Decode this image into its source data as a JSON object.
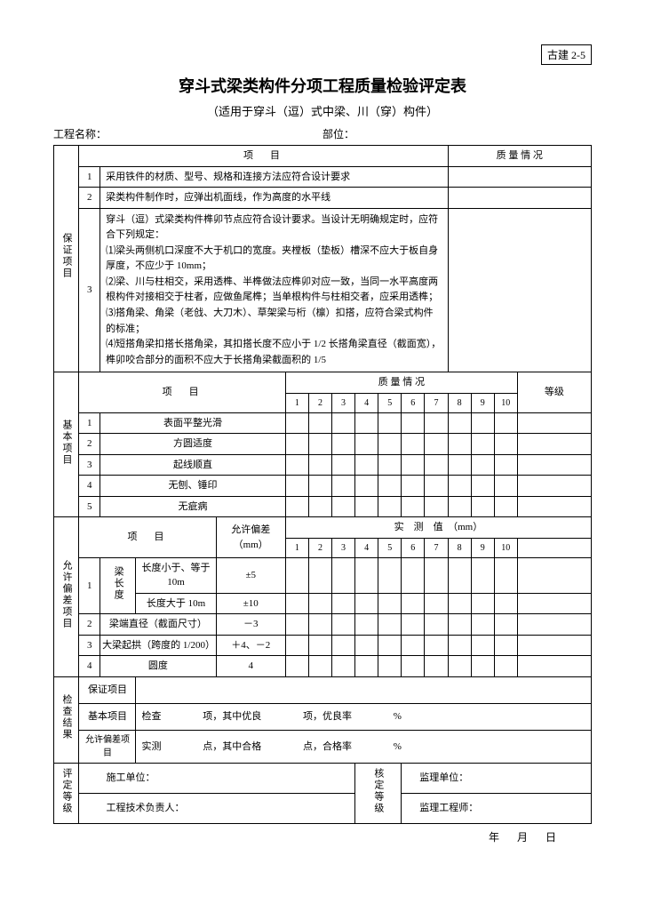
{
  "doc_code": "古建 2-5",
  "title": "穿斗式梁类构件分项工程质量检验评定表",
  "subtitle": "（适用于穿斗（逗）式中梁、川（穿）构件）",
  "project_label": "工程名称：",
  "section_label": "部位：",
  "col_item": "项　目",
  "col_quality": "质 量 情 况",
  "guarantee": {
    "label": "保证项目",
    "rows": [
      {
        "n": "1",
        "text": "采用铁件的材质、型号、规格和连接方法应符合设计要求"
      },
      {
        "n": "2",
        "text": "梁类构件制作时，应弹出机面线，作为高度的水平线"
      },
      {
        "n": "3",
        "text": "穿斗（逗）式梁类构件榫卯节点应符合设计要求。当设计无明确规定时，应符合下列规定：\n⑴梁头两侧机口深度不大于机口的宽度。夹樘板（垫板）槽深不应大于板自身厚度，不应少于 10mm；\n⑵梁、川与柱相交，采用透榫、半榫做法应榫卯对应一致，当同一水平高度两根构件对接相交于柱者，应做鱼尾榫；当单根构件与柱相交者，应采用透榫；\n⑶搭角梁、角梁（老戗、大刀木）、草架梁与桁（檩）扣搭，应符合梁式构件的标准；\n⑷短搭角梁扣搭长搭角梁，其扣搭长度不应小于 1/2 长搭角梁直径（截面宽），榫卯咬合部分的面积不应大于长搭角梁截面积的 1/5"
      }
    ]
  },
  "basic": {
    "label": "基本项目",
    "grade_label": "等级",
    "nums": [
      "1",
      "2",
      "3",
      "4",
      "5",
      "6",
      "7",
      "8",
      "9",
      "10"
    ],
    "rows": [
      {
        "n": "1",
        "text": "表面平整光滑"
      },
      {
        "n": "2",
        "text": "方圆适度"
      },
      {
        "n": "3",
        "text": "起线顺直"
      },
      {
        "n": "4",
        "text": "无刨、锤印"
      },
      {
        "n": "5",
        "text": "无疵病"
      }
    ]
  },
  "tolerance": {
    "label": "允许偏差项目",
    "tol_label": "允许偏差\n（mm）",
    "measured_label": "实　测　值　（mm）",
    "nums": [
      "1",
      "2",
      "3",
      "4",
      "5",
      "6",
      "7",
      "8",
      "9",
      "10"
    ],
    "beam_len_label": "梁长度",
    "rows": [
      {
        "n": "1",
        "sub": "长度小于、等于 10m",
        "tol": "±5"
      },
      {
        "nsub": "",
        "sub": "长度大于 10m",
        "tol": "±10"
      },
      {
        "n": "2",
        "text": "梁端直径（截面尺寸）",
        "tol": "－3"
      },
      {
        "n": "3",
        "text": "大梁起拱（跨度的 1/200）",
        "tol": "＋4、－2"
      },
      {
        "n": "4",
        "text": "圆度",
        "tol": "4"
      }
    ]
  },
  "check": {
    "label": "检查结果",
    "r1": "保证项目",
    "r2": "基本项目",
    "r2_text_a": "检查",
    "r2_text_b": "项，其中优良",
    "r2_text_c": "项，优良率",
    "r2_text_d": "%",
    "r3": "允许偏差项目",
    "r3_text_a": "实测",
    "r3_text_b": "点，其中合格",
    "r3_text_c": "点，合格率",
    "r3_text_d": "%"
  },
  "eval": {
    "label": "评定等级",
    "construction_unit": "施工单位：",
    "tech_lead": "工程技术负责人：",
    "verify_label": "核定等级",
    "supervision_unit": "监理单位：",
    "supervisor": "监理工程师："
  },
  "date": {
    "y": "年",
    "m": "月",
    "d": "日"
  }
}
